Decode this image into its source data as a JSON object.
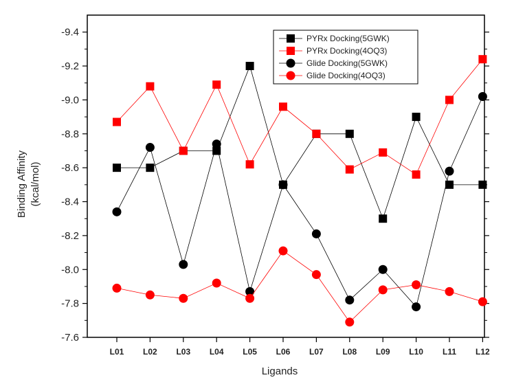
{
  "chart_data": {
    "type": "line",
    "title": "",
    "xlabel": "Ligands",
    "ylabel_line1": "Binding Affinity",
    "ylabel_line2": "(kcal/mol)",
    "categories": [
      "L01",
      "L02",
      "L03",
      "L04",
      "L05",
      "L06",
      "L07",
      "L08",
      "L09",
      "L10",
      "L11",
      "L12"
    ],
    "y_axis": {
      "min": -9.5,
      "max": -7.6,
      "inverted": true,
      "ticks": [
        -9.4,
        -9.2,
        -9.0,
        -8.8,
        -8.6,
        -8.4,
        -8.2,
        -8.0,
        -7.8,
        -7.6
      ],
      "tick_labels": [
        "-9.4",
        "-9.2",
        "-9.0",
        "-8.8",
        "-8.6",
        "-8.4",
        "-8.2",
        "-8.0",
        "-7.8",
        "-7.6"
      ]
    },
    "legend_position": "top-right",
    "grid": false,
    "series": [
      {
        "name": "PYRx Docking(5GWK)",
        "marker": "square",
        "color": "#000000",
        "values": [
          -8.6,
          -8.6,
          -8.7,
          -8.7,
          -9.2,
          -8.5,
          -8.8,
          -8.8,
          -8.3,
          -8.9,
          -8.5,
          -8.5
        ]
      },
      {
        "name": "PYRx Docking(4OQ3)",
        "marker": "square",
        "color": "#ff0000",
        "values": [
          -8.87,
          -9.08,
          -8.7,
          -9.09,
          -8.62,
          -8.96,
          -8.8,
          -8.59,
          -8.69,
          -8.56,
          -9.0,
          -9.24
        ]
      },
      {
        "name": "Glide Docking(5GWK)",
        "marker": "circle",
        "color": "#000000",
        "values": [
          -8.34,
          -8.72,
          -8.03,
          -8.74,
          -7.87,
          -8.5,
          -8.21,
          -7.82,
          -8.0,
          -7.78,
          -8.58,
          -9.02
        ]
      },
      {
        "name": "Glide Docking(4OQ3)",
        "marker": "circle",
        "color": "#ff0000",
        "values": [
          -7.89,
          -7.85,
          -7.83,
          -7.92,
          -7.83,
          -8.11,
          -7.97,
          -7.69,
          -7.88,
          -7.91,
          -7.87,
          -7.81
        ]
      }
    ]
  }
}
